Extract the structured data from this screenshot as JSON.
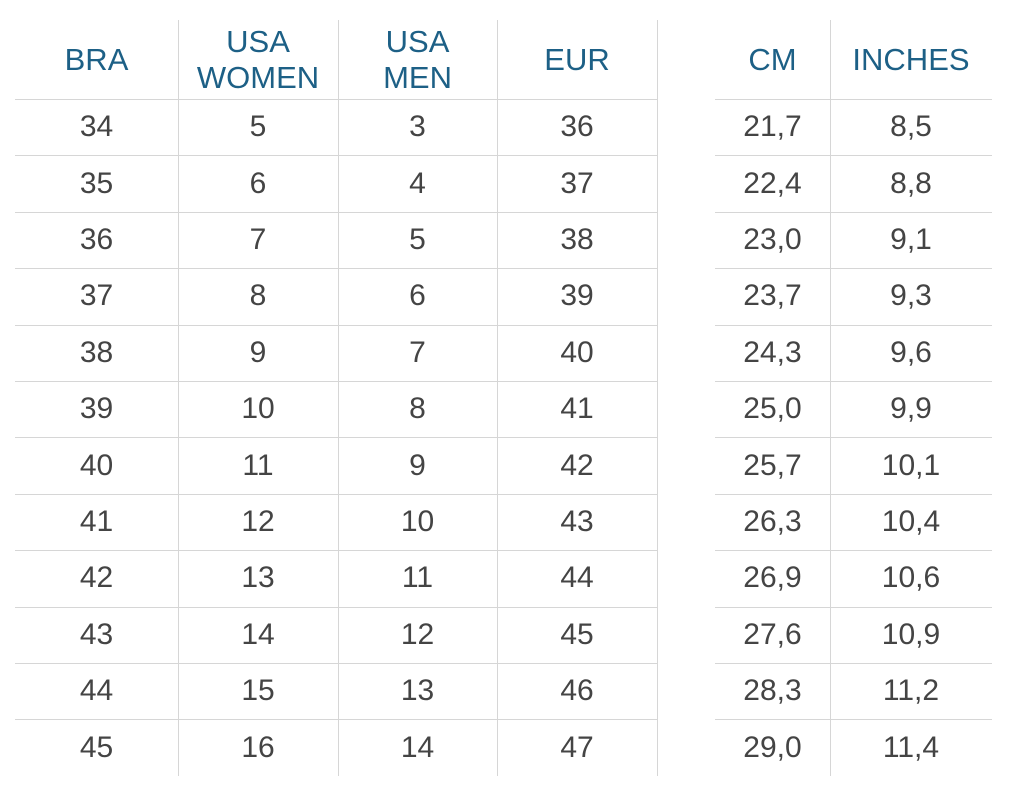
{
  "left_table": {
    "headers": [
      "BRA",
      "USA WOMEN",
      "USA MEN",
      "EUR"
    ],
    "rows": [
      [
        34,
        5,
        3,
        36
      ],
      [
        35,
        6,
        4,
        37
      ],
      [
        36,
        7,
        5,
        38
      ],
      [
        37,
        8,
        6,
        39
      ],
      [
        38,
        9,
        7,
        40
      ],
      [
        39,
        10,
        8,
        41
      ],
      [
        40,
        11,
        9,
        42
      ],
      [
        41,
        12,
        10,
        43
      ],
      [
        42,
        13,
        11,
        44
      ],
      [
        43,
        14,
        12,
        45
      ],
      [
        44,
        15,
        13,
        46
      ],
      [
        45,
        16,
        14,
        47
      ]
    ]
  },
  "right_table": {
    "headers": [
      "CM",
      "INCHES"
    ],
    "rows": [
      [
        "21,7",
        "8,5"
      ],
      [
        "22,4",
        "8,8"
      ],
      [
        "23,0",
        "9,1"
      ],
      [
        "23,7",
        "9,3"
      ],
      [
        "24,3",
        "9,6"
      ],
      [
        "25,0",
        "9,9"
      ],
      [
        "25,7",
        "10,1"
      ],
      [
        "26,3",
        "10,4"
      ],
      [
        "26,9",
        "10,6"
      ],
      [
        "27,6",
        "10,9"
      ],
      [
        "28,3",
        "11,2"
      ],
      [
        "29,0",
        "11,4"
      ]
    ]
  }
}
